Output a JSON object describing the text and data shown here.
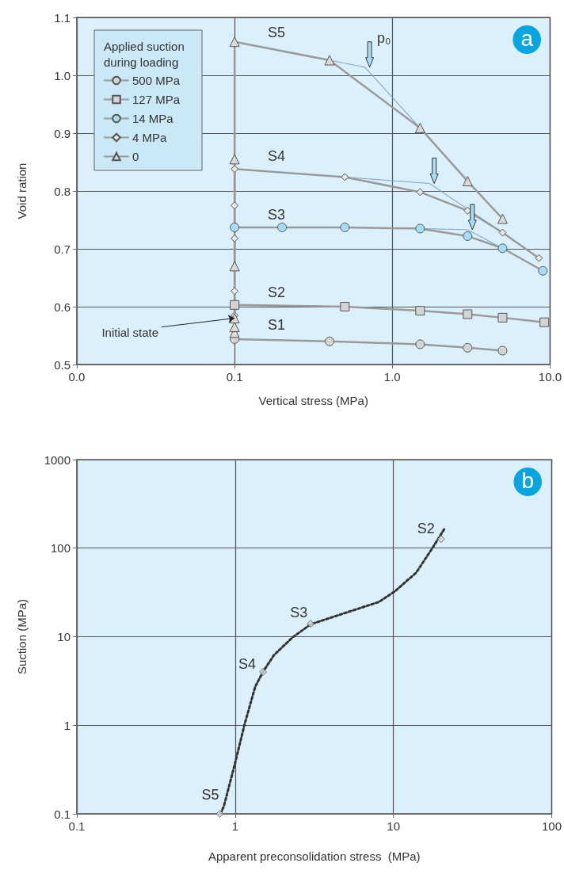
{
  "chart_data": [
    {
      "type": "line",
      "title": "a",
      "xlabel": "Vertical stress (MPa)",
      "ylabel": "Void ration",
      "legend_title": "Applied suction during loading",
      "log": "x",
      "xlim": [
        0.01,
        10
      ],
      "xticks": [
        {
          "value": 0.01,
          "label": "0.0"
        },
        {
          "value": 0.1,
          "label": "0.1"
        },
        {
          "value": 1,
          "label": "1.0"
        },
        {
          "value": 10,
          "label": "10.0"
        }
      ],
      "ylim": [
        0.5,
        1.1
      ],
      "yticks": [
        0.5,
        0.6,
        0.7,
        0.8,
        0.9,
        {
          "value": 1,
          "label": "1.0"
        },
        1.1
      ],
      "grid": true,
      "legend": "top left",
      "series": [
        {
          "name": "500 MPa",
          "color": "#d4d4d4",
          "marker": "circle",
          "x": [
            0.1,
            0.4,
            1.5,
            3,
            5
          ],
          "values": [
            0.544,
            0.54,
            0.535,
            0.529,
            0.524
          ]
        },
        {
          "name": "127 MPa",
          "color": "#d4d4d4",
          "marker": "square",
          "x": [
            0.1,
            0.5,
            1.5,
            3,
            5,
            9.2
          ],
          "values": [
            0.603,
            0.6,
            0.593,
            0.587,
            0.581,
            0.573
          ]
        },
        {
          "name": "14 MPa",
          "color": "#a8dcf5",
          "marker": "circle",
          "x": [
            0.1,
            0.2,
            0.5,
            1.5,
            3,
            5,
            9
          ],
          "values": [
            0.737,
            0.737,
            0.737,
            0.735,
            0.722,
            0.701,
            0.662
          ]
        },
        {
          "name": "4 MPa",
          "color": "#e6e6e6",
          "marker": "diamond",
          "x": [
            0.1,
            0.1,
            0.1,
            0.1,
            0.1,
            0.5,
            1.5,
            3,
            5,
            8.5
          ],
          "values": [
            0.585,
            0.627,
            0.718,
            0.775,
            0.838,
            0.824,
            0.798,
            0.766,
            0.728,
            0.684
          ]
        },
        {
          "name": "0",
          "color": "#d9d9d9",
          "marker": "triangle",
          "x": [
            0.1,
            0.1,
            0.1,
            0.1,
            0.1,
            0.1,
            0.4,
            1.5,
            3,
            5
          ],
          "values": [
            0.555,
            0.565,
            0.58,
            0.67,
            0.855,
            1.058,
            1.026,
            0.909,
            0.817,
            0.752
          ]
        },
        {
          "type": "line",
          "color": "#7fa6c0",
          "marker": "none",
          "line_style": "dotted",
          "x": [
            0.4,
            0.67,
            1.5
          ],
          "values": [
            1.026,
            1.014,
            0.909
          ]
        },
        {
          "type": "line",
          "color": "#7fa6c0",
          "marker": "none",
          "line_style": "dotted",
          "x": [
            0.5,
            1.72,
            5
          ],
          "values": [
            0.824,
            0.813,
            0.728
          ]
        },
        {
          "type": "line",
          "color": "#7fa6c0",
          "marker": "none",
          "line_style": "dotted",
          "x": [
            1.5,
            3.0,
            5
          ],
          "values": [
            0.735,
            0.733,
            0.701
          ]
        }
      ],
      "annotations": [
        {
          "text": "S5",
          "x": 0.1,
          "y": 1.058
        },
        {
          "text": "S4",
          "x": 0.1,
          "y": 0.838
        },
        {
          "text": "S3",
          "x": 0.1,
          "y": 0.737
        },
        {
          "text": "S2",
          "x": 0.1,
          "y": 0.603
        },
        {
          "text": "S1",
          "x": 0.1,
          "y": 0.544
        },
        {
          "text": "p₀",
          "x": 0.67,
          "y": 1.014
        },
        {
          "text": "Initial state",
          "x": 0.1,
          "y": 0.58
        }
      ]
    },
    {
      "type": "scatter",
      "title": "b",
      "xlabel": "Apparent preconsolidation stress  (MPa)",
      "ylabel": "Suction (MPa)",
      "log": "xy",
      "xlim": [
        0.1,
        100
      ],
      "xticks": [
        0.1,
        1,
        10,
        100
      ],
      "ylim": [
        0.1,
        1000
      ],
      "yticks": [
        0.1,
        1,
        10,
        100,
        1000
      ],
      "grid": true,
      "series": [
        {
          "type": "line",
          "color": "#333333",
          "marker": "none",
          "line_style": "dotted",
          "x": [
            0.81,
            0.85,
            0.99,
            1.15,
            1.34,
            1.51,
            1.76,
            2.3,
            3.0,
            4.75,
            8.1,
            10.2,
            13.9,
            17.5,
            21.2
          ],
          "values": [
            0.1,
            0.123,
            0.35,
            1.04,
            2.73,
            4.1,
            6.2,
            9.8,
            13.8,
            18.1,
            24.7,
            32.5,
            52.7,
            98,
            170
          ]
        },
        {
          "color": "#d4d4d4",
          "marker": "diamond",
          "x": [
            20,
            3,
            1.5,
            0.8
          ],
          "values": [
            127,
            14,
            4,
            0.1
          ]
        }
      ],
      "annotations": [
        {
          "text": "S2",
          "x": 20,
          "y": 127
        },
        {
          "text": "S3",
          "x": 3,
          "y": 14
        },
        {
          "text": "S4",
          "x": 1.5,
          "y": 4
        },
        {
          "text": "S5",
          "x": 0.8,
          "y": 0.1
        }
      ]
    }
  ]
}
